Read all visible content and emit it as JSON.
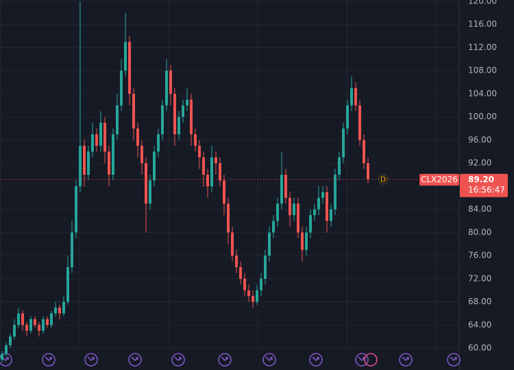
{
  "chart_data": {
    "type": "candlestick",
    "symbol": "CLX2026",
    "last_price": {
      "value": 89.2,
      "label": "89.20"
    },
    "countdown": "16:56:47",
    "marker": "D",
    "up_color": "#26a69a",
    "down_color": "#ef5350",
    "ylim": [
      59.7,
      120.2
    ],
    "yticks": [
      {
        "value": 60,
        "label": "60.00"
      },
      {
        "value": 64,
        "label": "64.00"
      },
      {
        "value": 68,
        "label": "68.00"
      },
      {
        "value": 72,
        "label": "72.00"
      },
      {
        "value": 76,
        "label": "76.00"
      },
      {
        "value": 80,
        "label": "80.00"
      },
      {
        "value": 84,
        "label": "84.00"
      },
      {
        "value": 88,
        "label": "88.00"
      },
      {
        "value": 92,
        "label": "92.00"
      },
      {
        "value": 96,
        "label": "96.00"
      },
      {
        "value": 100,
        "label": "100.00"
      },
      {
        "value": 104,
        "label": "104.00"
      },
      {
        "value": 108,
        "label": "108.00"
      },
      {
        "value": 112,
        "label": "112.00"
      },
      {
        "value": 116,
        "label": "116.00"
      },
      {
        "value": 120,
        "label": "120.00"
      }
    ],
    "grid": true,
    "ohlc": [
      [
        58,
        59.5,
        57.5,
        59
      ],
      [
        59,
        61,
        58.5,
        60.5
      ],
      [
        60.5,
        62.5,
        60,
        62
      ],
      [
        62,
        65,
        61.5,
        64
      ],
      [
        64,
        67,
        63.5,
        66
      ],
      [
        66,
        66.5,
        63,
        64
      ],
      [
        64,
        64.5,
        62,
        63
      ],
      [
        63,
        65.5,
        62.5,
        65
      ],
      [
        65,
        65.5,
        63.5,
        64
      ],
      [
        64,
        64.5,
        62,
        63
      ],
      [
        63,
        65.5,
        62.5,
        65
      ],
      [
        65,
        65.5,
        63.5,
        64
      ],
      [
        64,
        66.5,
        63.5,
        66
      ],
      [
        66,
        68,
        65.5,
        67
      ],
      [
        67,
        67.5,
        65,
        66
      ],
      [
        66,
        69,
        65.5,
        68
      ],
      [
        68,
        76,
        67.5,
        74
      ],
      [
        74,
        82,
        73,
        80
      ],
      [
        80,
        89,
        79,
        88
      ],
      [
        88,
        120,
        87,
        95
      ],
      [
        95,
        96,
        88,
        90
      ],
      [
        90,
        95,
        89,
        94
      ],
      [
        94,
        99,
        93,
        97
      ],
      [
        97,
        98,
        94,
        95
      ],
      [
        95,
        101,
        94,
        99
      ],
      [
        99,
        100,
        92,
        94
      ],
      [
        94,
        95,
        88,
        90
      ],
      [
        90,
        98,
        89,
        97
      ],
      [
        97,
        104,
        96,
        102
      ],
      [
        102,
        110,
        101,
        108
      ],
      [
        108,
        118,
        107,
        113
      ],
      [
        113,
        114,
        102,
        104
      ],
      [
        104,
        105,
        96,
        98
      ],
      [
        98,
        99,
        93,
        95
      ],
      [
        95,
        96,
        90,
        92
      ],
      [
        92,
        93,
        80,
        85
      ],
      [
        85,
        90,
        84,
        89
      ],
      [
        89,
        95,
        88,
        94
      ],
      [
        94,
        98,
        93,
        97
      ],
      [
        97,
        103,
        96,
        102
      ],
      [
        102,
        110,
        101,
        108
      ],
      [
        108,
        109,
        102,
        104
      ],
      [
        104,
        105,
        95,
        97
      ],
      [
        97,
        101,
        96,
        100
      ],
      [
        100,
        103,
        99,
        102
      ],
      [
        102,
        105,
        101,
        103
      ],
      [
        103,
        104,
        95,
        97
      ],
      [
        97,
        98,
        94,
        95
      ],
      [
        95,
        96,
        91,
        93
      ],
      [
        93,
        94,
        88,
        90
      ],
      [
        90,
        91,
        86,
        88
      ],
      [
        88,
        95,
        87,
        93
      ],
      [
        93,
        94,
        90,
        92
      ],
      [
        92,
        93,
        88,
        89
      ],
      [
        89,
        90,
        83,
        85
      ],
      [
        85,
        86,
        78,
        80
      ],
      [
        80,
        81,
        75,
        76
      ],
      [
        76,
        77,
        73,
        74
      ],
      [
        74,
        75,
        71,
        72
      ],
      [
        72,
        73,
        69,
        70
      ],
      [
        70,
        71,
        68,
        69
      ],
      [
        69,
        70,
        67,
        68
      ],
      [
        68,
        71,
        67.5,
        70
      ],
      [
        70,
        73,
        69,
        72
      ],
      [
        72,
        77,
        71,
        76
      ],
      [
        76,
        81,
        75,
        80
      ],
      [
        80,
        83,
        79,
        82
      ],
      [
        82,
        86,
        81,
        85
      ],
      [
        85,
        94,
        84,
        90
      ],
      [
        90,
        91,
        85,
        86
      ],
      [
        86,
        87,
        81,
        83
      ],
      [
        83,
        86,
        82,
        85
      ],
      [
        85,
        86,
        79,
        80
      ],
      [
        80,
        81,
        75,
        77
      ],
      [
        77,
        81,
        76,
        80
      ],
      [
        80,
        84,
        79,
        83
      ],
      [
        83,
        85,
        82,
        84
      ],
      [
        84,
        88,
        83,
        86
      ],
      [
        86,
        88,
        85,
        87
      ],
      [
        87,
        88,
        80,
        82
      ],
      [
        82,
        85,
        81,
        84
      ],
      [
        84,
        91,
        83,
        90
      ],
      [
        90,
        94,
        89,
        93
      ],
      [
        93,
        99,
        92,
        98
      ],
      [
        98,
        103,
        97,
        102
      ],
      [
        102,
        107,
        101,
        105
      ],
      [
        105,
        106,
        101,
        102
      ],
      [
        102,
        103,
        95,
        96
      ],
      [
        96,
        97,
        91,
        92
      ],
      [
        92,
        93,
        88.5,
        89.2
      ]
    ]
  }
}
